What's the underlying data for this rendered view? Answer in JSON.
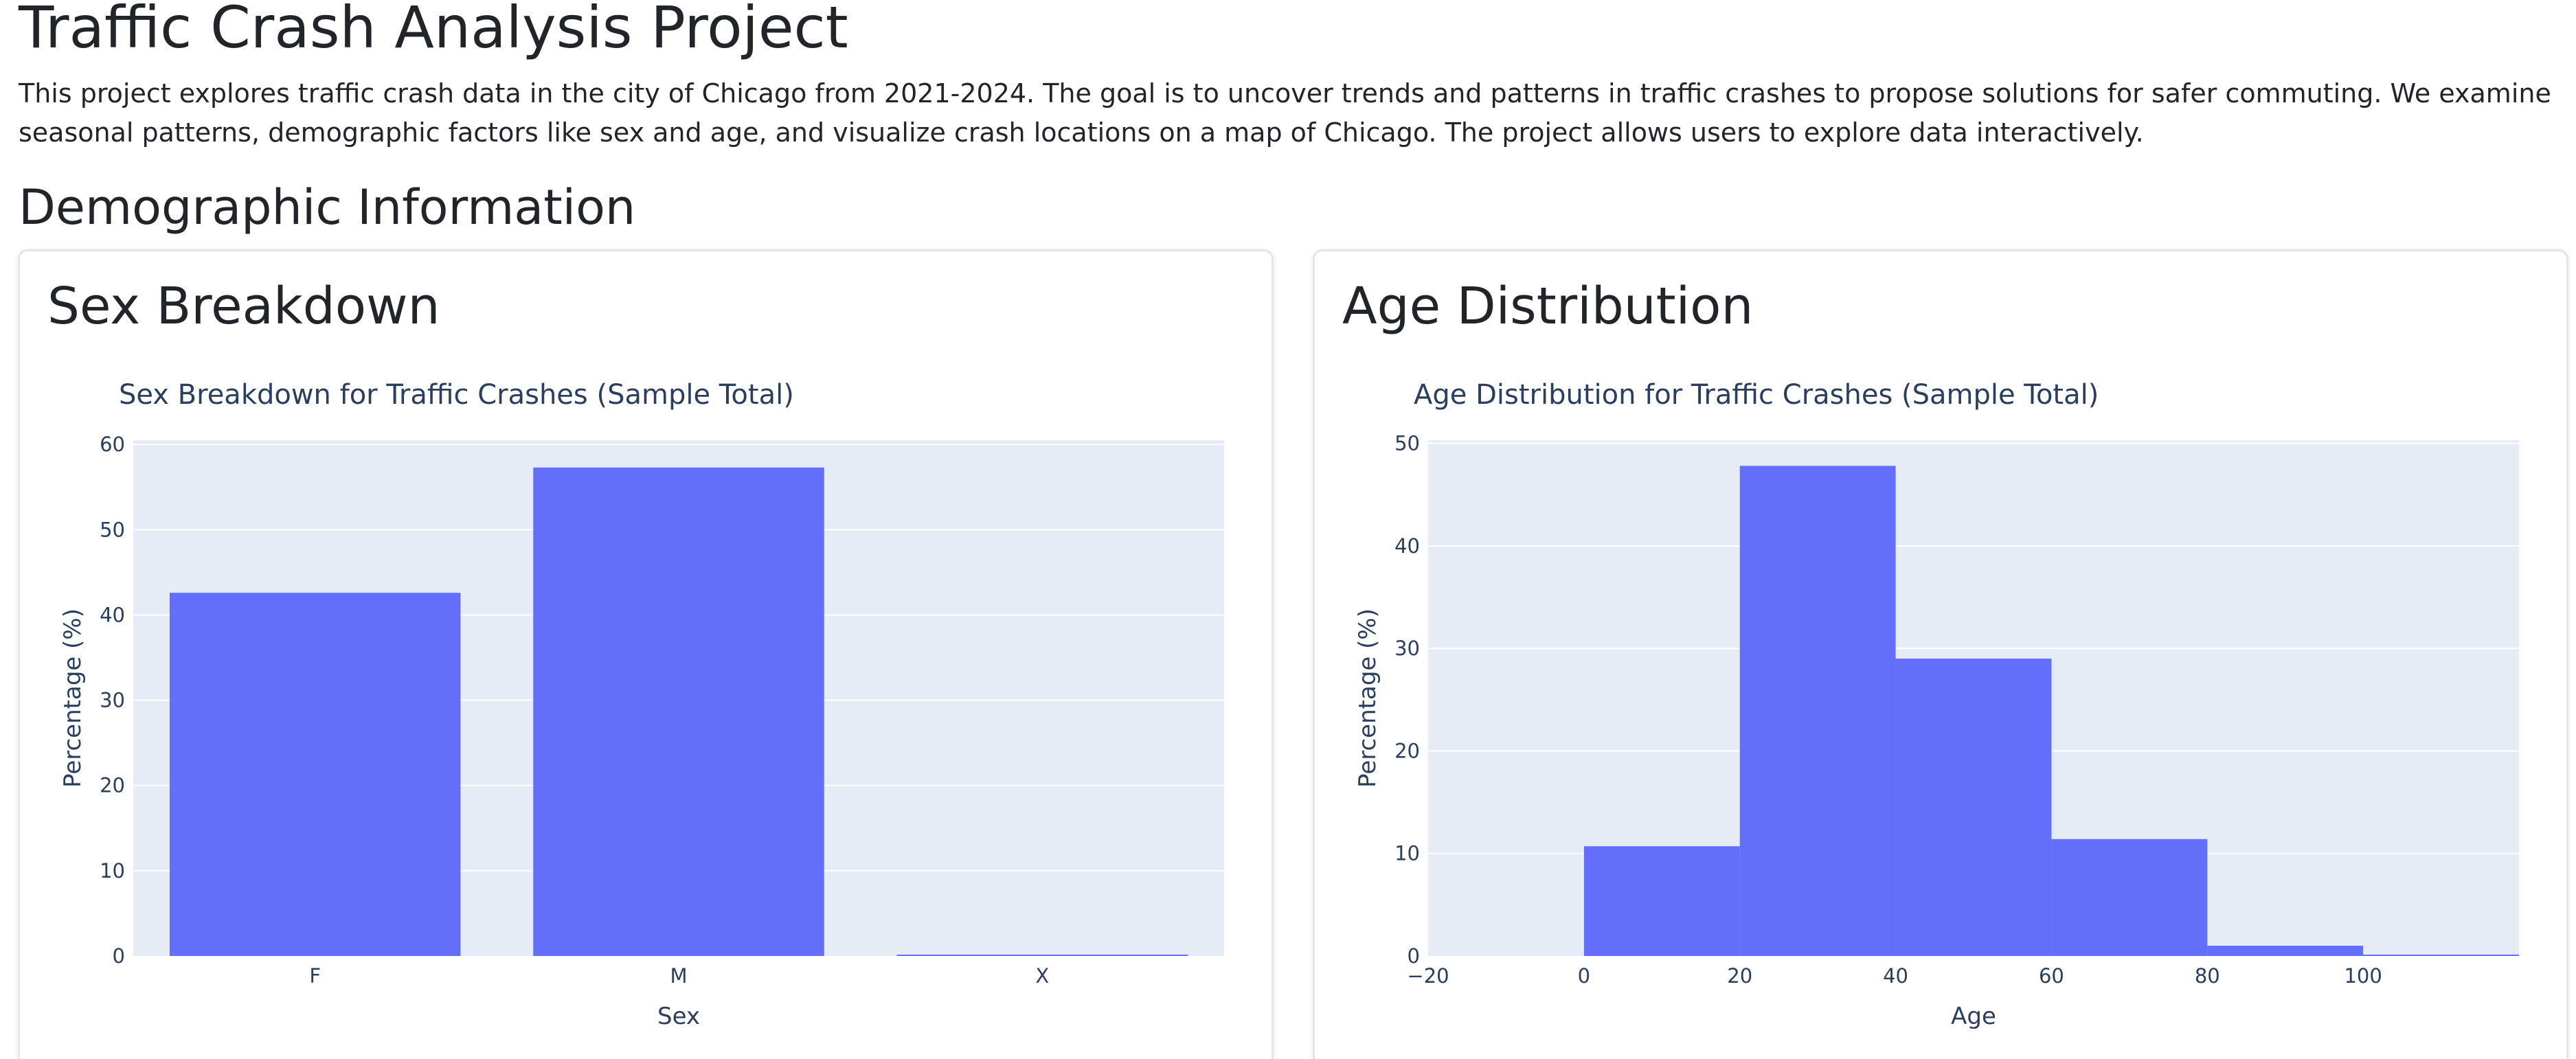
{
  "page": {
    "title": "Traffic Crash Analysis Project",
    "intro": "This project explores traffic crash data in the city of Chicago from 2021-2024. The goal is to uncover trends and patterns in traffic crashes to propose solutions for safer commuting. We examine seasonal patterns, demographic factors like sex and age, and visualize crash locations on a map of Chicago. The project allows users to explore data interactively.",
    "section_title": "Demographic Information"
  },
  "cards": {
    "sex": {
      "heading": "Sex Breakdown"
    },
    "age": {
      "heading": "Age Distribution"
    }
  },
  "colors": {
    "bar": "#636efa",
    "plot_bg": "#e5ecf6",
    "grid": "#ffffff",
    "text": "#2a3f5f"
  },
  "chart_data": [
    {
      "id": "sex",
      "type": "bar",
      "title": "Sex Breakdown for Traffic Crashes (Sample Total)",
      "categories": [
        "F",
        "M",
        "X"
      ],
      "values": [
        42.6,
        57.3,
        0.1
      ],
      "xlabel": "Sex",
      "ylabel": "Percentage (%)",
      "ylim": [
        0,
        60.5
      ],
      "yticks": [
        0,
        10,
        20,
        30,
        40,
        50,
        60
      ],
      "grid": true
    },
    {
      "id": "age",
      "type": "bar",
      "subtype": "histogram",
      "title": "Age Distribution for Traffic Crashes (Sample Total)",
      "bins": [
        {
          "start": 0,
          "end": 20,
          "value": 10.7
        },
        {
          "start": 20,
          "end": 40,
          "value": 47.8
        },
        {
          "start": 40,
          "end": 60,
          "value": 29.0
        },
        {
          "start": 60,
          "end": 80,
          "value": 11.4
        },
        {
          "start": 80,
          "end": 100,
          "value": 1.0
        },
        {
          "start": 100,
          "end": 120,
          "value": 0.1
        }
      ],
      "xlabel": "Age",
      "ylabel": "Percentage (%)",
      "xlim": [
        -20,
        120
      ],
      "ylim": [
        0,
        50.3
      ],
      "xticks": [
        "−20",
        "0",
        "20",
        "40",
        "60",
        "80",
        "100"
      ],
      "xtick_values": [
        -20,
        0,
        20,
        40,
        60,
        80,
        100
      ],
      "yticks": [
        0,
        10,
        20,
        30,
        40,
        50
      ],
      "grid": true
    }
  ]
}
